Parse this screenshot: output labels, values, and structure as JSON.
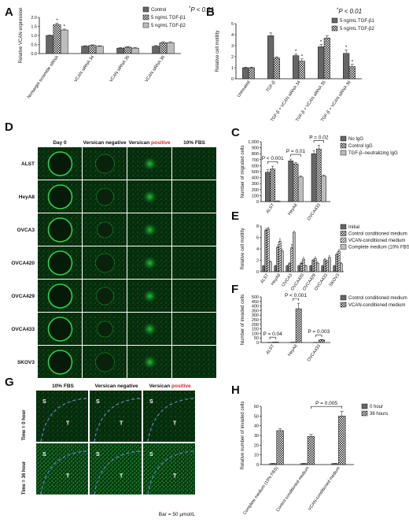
{
  "colors": {
    "solid": "#666666",
    "checker_dark": "#222222",
    "light": "#bdbdbd",
    "white": "#ffffff",
    "red": "#d8262b",
    "green": "#1f7a2a",
    "dash": "#5b86c6"
  },
  "panels": {
    "A": "A",
    "B": "B",
    "C": "C",
    "D": "D",
    "E": "E",
    "F": "F",
    "G": "G",
    "H": "H"
  },
  "microscopy_D": {
    "headers": [
      "Day 0",
      "Versican negative",
      "Versican ",
      "10% FBS"
    ],
    "header_red": "positive",
    "rows": [
      "ALST",
      "HeyA8",
      "OVCA3",
      "OVCA420",
      "OVCA429",
      "OVCA433",
      "SKOV3"
    ]
  },
  "microscopy_G": {
    "headers": [
      "10% FBS",
      "Versican negative",
      "Versican "
    ],
    "header_red": "positive",
    "rows": [
      "Time = 0 hour",
      "Time = 36 hour"
    ],
    "markers": {
      "s": "S",
      "t": "T"
    },
    "scale_bar": "Bar = 50 μmol/L"
  },
  "chart_data": [
    {
      "panel": "A",
      "type": "bar",
      "ylabel": "Relative VCAN expression",
      "ylim": [
        0,
        2.0
      ],
      "yticks": [
        "0.0",
        "0.5",
        "1.0",
        "1.5",
        "2.0"
      ],
      "categories": [
        "Nontarget scramble siRNA",
        "VCAN siRNA 34",
        "VCAN siRNA 35",
        "VCAN siRNA 36"
      ],
      "series": [
        {
          "name": "Control",
          "style": "solid",
          "values": [
            1.0,
            0.4,
            0.3,
            0.4
          ],
          "err": [
            0.02,
            0.03,
            0.03,
            0.04
          ]
        },
        {
          "name": "5 ng/mL TGF-β1",
          "style": "checker",
          "values": [
            1.6,
            0.45,
            0.35,
            0.6
          ],
          "err": [
            0.08,
            0.03,
            0.03,
            0.05
          ]
        },
        {
          "name": "5 ng/mL TGF-β2",
          "style": "light",
          "values": [
            1.3,
            0.4,
            0.3,
            0.6
          ],
          "err": [
            0.05,
            0.03,
            0.03,
            0.05
          ]
        }
      ],
      "stars": [
        {
          "cat": 0,
          "series": 1,
          "text": "*"
        },
        {
          "cat": 0,
          "series": 2,
          "text": "*"
        }
      ],
      "note_star": "*",
      "note": "P < 0.01"
    },
    {
      "panel": "B",
      "type": "bar",
      "ylabel": "Relative cell motility",
      "ylim": [
        0,
        5
      ],
      "yticks": [
        "0",
        "1",
        "2",
        "3",
        "4",
        "5"
      ],
      "categories": [
        "Untreated",
        "TGF-β",
        "TGF-β + VCAN siRNA 34",
        "TGF-β + VCAN siRNA 35",
        "TGF-β + VCAN siRNA 36"
      ],
      "series": [
        {
          "name": "5 ng/mL TGF-β1",
          "style": "solid",
          "values": [
            1.0,
            3.9,
            2.1,
            2.9,
            2.3
          ],
          "err": [
            0.05,
            0.25,
            0.15,
            0.2,
            0.3
          ]
        },
        {
          "name": "5 ng/mL TGF-β2",
          "style": "checker",
          "values": [
            1.0,
            1.9,
            1.6,
            3.7,
            1.1
          ],
          "err": [
            0.05,
            0.1,
            0.2,
            0.2,
            0.2
          ]
        }
      ],
      "stars": [
        {
          "cat": 2,
          "series": 0,
          "text": "*"
        },
        {
          "cat": 2,
          "series": 1,
          "text": "*"
        },
        {
          "cat": 3,
          "series": 0,
          "text": "*"
        },
        {
          "cat": 4,
          "series": 0,
          "text": "*"
        },
        {
          "cat": 4,
          "series": 1,
          "text": "*"
        }
      ],
      "note_star": "*",
      "note": "P < 0.01"
    },
    {
      "panel": "C",
      "type": "bar",
      "ylabel": "Number of migrated cells",
      "ylim": [
        0,
        1000
      ],
      "yticks": [
        "0",
        "100",
        "200",
        "300",
        "400",
        "500",
        "600",
        "700",
        "800",
        "900",
        "1,000"
      ],
      "categories": [
        "ALST",
        "HeyA8",
        "OVCA433"
      ],
      "series": [
        {
          "name": "No IgG",
          "style": "solid",
          "values": [
            490,
            680,
            800
          ],
          "err": [
            40,
            30,
            50
          ]
        },
        {
          "name": "Control IgG",
          "style": "checker",
          "values": [
            545,
            630,
            880
          ],
          "err": [
            45,
            25,
            60
          ]
        },
        {
          "name": "TGF-β–neutralizing IgG",
          "style": "light",
          "values": [
            10,
            410,
            425
          ],
          "err": [
            3,
            20,
            20
          ]
        }
      ],
      "brackets": [
        {
          "from": 0,
          "to": 2,
          "text": "P < 0.001"
        },
        {
          "from": 0,
          "to": 2,
          "text": "P = 0.01"
        },
        {
          "from": 0,
          "to": 2,
          "text": "P = 0.02"
        }
      ]
    },
    {
      "panel": "E",
      "type": "bar",
      "ylabel": "Relative cell motility",
      "ylim": [
        0,
        8
      ],
      "yticks": [
        "0",
        "2",
        "4",
        "6",
        "8"
      ],
      "categories": [
        "ALST",
        "HeyA8",
        "OVCA3",
        "OVCA420",
        "OVCA429",
        "OVCA433",
        "SKOV3"
      ],
      "series": [
        {
          "name": "Initial",
          "style": "solid",
          "values": [
            1,
            1,
            1,
            1,
            1,
            1,
            1
          ],
          "err": [
            0.1,
            0.1,
            0.1,
            0.1,
            0.1,
            0.1,
            0.1
          ]
        },
        {
          "name": "Control conditioned medium",
          "style": "checker",
          "values": [
            7.3,
            4.3,
            1.4,
            1.5,
            2.0,
            2.1,
            3.0
          ],
          "err": [
            0.3,
            0.4,
            0.2,
            0.2,
            0.2,
            0.2,
            0.3
          ]
        },
        {
          "name": "VCAN-conditioned medium",
          "style": "hatch",
          "values": [
            7.5,
            5.3,
            4.2,
            2.2,
            2.3,
            1.8,
            3.6
          ],
          "err": [
            0.3,
            0.5,
            0.6,
            0.3,
            0.3,
            0.2,
            0.3
          ]
        },
        {
          "name": "Complete medium (10% FBS)",
          "style": "light",
          "values": [
            1.7,
            3.6,
            6.9,
            1.0,
            1.5,
            2.5,
            1.4
          ],
          "err": [
            0.2,
            0.4,
            0.2,
            0.1,
            0.2,
            0.3,
            0.2
          ]
        }
      ]
    },
    {
      "panel": "F",
      "type": "bar",
      "ylabel": "Number of invaded cells",
      "ylim": [
        0,
        500
      ],
      "yticks": [
        "0",
        "50",
        "100",
        "150",
        "200",
        "250",
        "300",
        "350",
        "400",
        "450",
        "500"
      ],
      "categories": [
        "ALST",
        "HeyA8",
        "OVCA433"
      ],
      "series": [
        {
          "name": "Control conditioned medium",
          "style": "solid",
          "values": [
            2,
            3,
            2
          ],
          "err": [
            1,
            1,
            1
          ]
        },
        {
          "name": "VCAN-conditioned medium",
          "style": "checker",
          "values": [
            6,
            370,
            28
          ],
          "err": [
            1,
            60,
            5
          ]
        }
      ],
      "brackets": [
        {
          "from": 0,
          "to": 1,
          "text": "P = 0.04"
        },
        {
          "from": 0,
          "to": 1,
          "text": "P < 0.001"
        },
        {
          "from": 0,
          "to": 1,
          "text": "P = 0.003"
        }
      ]
    },
    {
      "panel": "H",
      "type": "bar",
      "ylabel": "Relative number of invaded cells",
      "ylim": [
        0,
        60
      ],
      "yticks": [
        "0",
        "10",
        "20",
        "30",
        "40",
        "50",
        "60"
      ],
      "categories": [
        "Complete medium (10% FBS)",
        "Control conditioned medium",
        "VCAN-conditioned medium"
      ],
      "series": [
        {
          "name": "0 hour",
          "style": "solid",
          "values": [
            1,
            1,
            1
          ],
          "err": [
            0.2,
            0.2,
            0.2
          ]
        },
        {
          "name": "36 hours",
          "style": "checker",
          "values": [
            35,
            29,
            50
          ],
          "err": [
            2,
            2,
            5
          ]
        }
      ],
      "brackets": [
        {
          "from": 1,
          "to": 2,
          "text": "P = 0.005",
          "span": true
        }
      ]
    }
  ]
}
